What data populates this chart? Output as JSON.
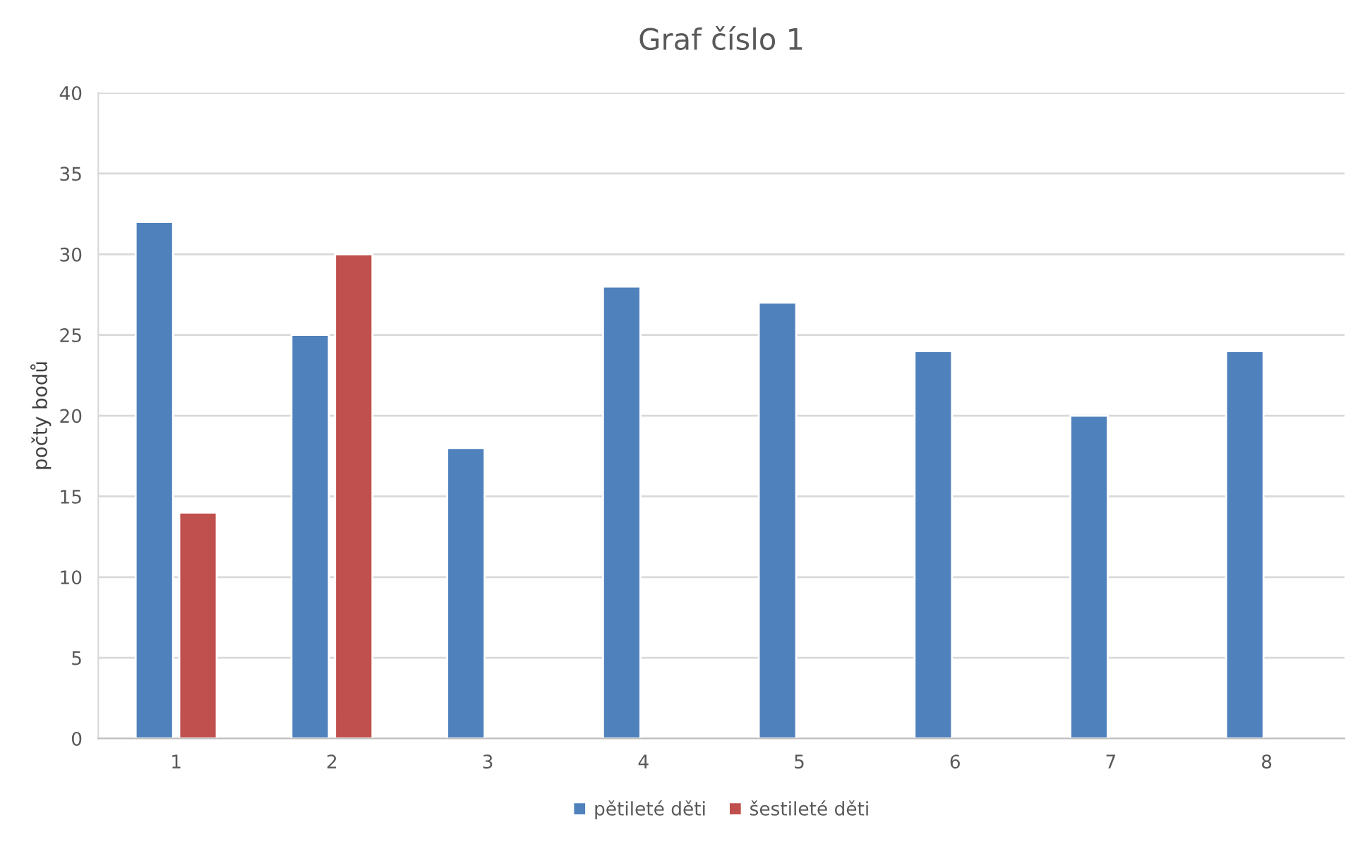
{
  "chart_data": {
    "type": "bar",
    "title": "Graf číslo 1",
    "ylabel": "počty bodů",
    "categories": [
      "1",
      "2",
      "3",
      "4",
      "5",
      "6",
      "7",
      "8"
    ],
    "series": [
      {
        "name": "pětileté děti",
        "color": "#4f81bd",
        "values": [
          32,
          25,
          18,
          28,
          27,
          24,
          20,
          24
        ]
      },
      {
        "name": "šestileté děti",
        "color": "#c0504d",
        "values": [
          14,
          30,
          null,
          null,
          null,
          null,
          null,
          null
        ]
      }
    ],
    "ylim": [
      0,
      40
    ],
    "yticks": [
      0,
      5,
      10,
      15,
      20,
      25,
      30,
      35,
      40
    ],
    "grid": "y",
    "legend": "bottom"
  }
}
